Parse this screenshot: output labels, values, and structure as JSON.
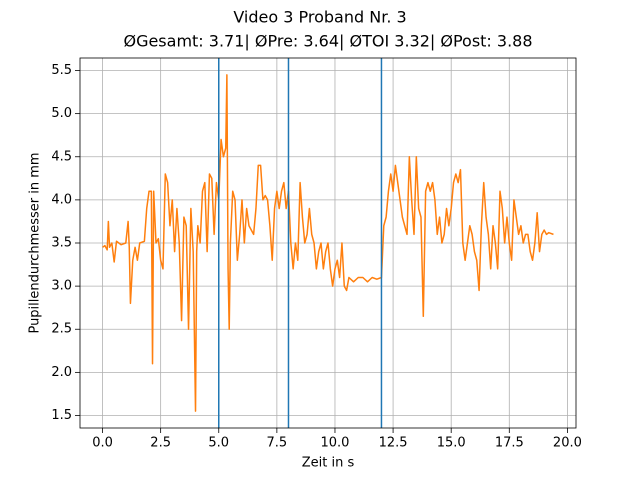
{
  "chart_data": {
    "type": "line",
    "title": "Video 3 Proband Nr. 3",
    "subtitle": "ØGesamt: 3.71| ØPre: 3.64| ØTOI 3.32| ØPost: 3.88",
    "x_label": "Zeit in s",
    "y_label": "Pupillendurchmesser in mm",
    "xlim": [
      -0.97,
      20.37
    ],
    "ylim": [
      1.355,
      5.645
    ],
    "xticks": [
      {
        "value": 0,
        "label": "0.0"
      },
      2.5,
      {
        "value": 5,
        "label": "5.0"
      },
      7.5,
      {
        "value": 10,
        "label": "10.0"
      },
      12.5,
      {
        "value": 15,
        "label": "15.0"
      },
      17.5,
      {
        "value": 20,
        "label": "20.0"
      }
    ],
    "yticks": [
      1.5,
      {
        "value": 2,
        "label": "2.0"
      },
      2.5,
      {
        "value": 3,
        "label": "3.0"
      },
      3.5,
      {
        "value": 4,
        "label": "4.0"
      },
      4.5,
      {
        "value": 5,
        "label": "5.0"
      },
      5.5
    ],
    "grid": true,
    "vlines": [
      5,
      8,
      12
    ],
    "vline_color": "#1f77b4",
    "series": [
      {
        "color": "#ff7f0e",
        "x": [
          0.0,
          0.1,
          0.2,
          0.25,
          0.3,
          0.4,
          0.5,
          0.6,
          0.8,
          1.0,
          1.1,
          1.15,
          1.2,
          1.3,
          1.4,
          1.5,
          1.6,
          1.8,
          1.9,
          2.0,
          2.1,
          2.15,
          2.2,
          2.3,
          2.4,
          2.5,
          2.6,
          2.7,
          2.8,
          2.9,
          3.0,
          3.1,
          3.2,
          3.3,
          3.4,
          3.5,
          3.6,
          3.7,
          3.8,
          3.9,
          4.0,
          4.05,
          4.1,
          4.2,
          4.3,
          4.4,
          4.5,
          4.6,
          4.7,
          4.8,
          4.9,
          5.0,
          5.1,
          5.2,
          5.3,
          5.35,
          5.4,
          5.45,
          5.5,
          5.6,
          5.7,
          5.8,
          5.9,
          6.0,
          6.1,
          6.2,
          6.3,
          6.5,
          6.6,
          6.7,
          6.8,
          6.9,
          7.0,
          7.1,
          7.2,
          7.3,
          7.4,
          7.5,
          7.6,
          7.7,
          7.8,
          7.9,
          8.0,
          8.1,
          8.2,
          8.3,
          8.4,
          8.5,
          8.6,
          8.7,
          8.8,
          8.9,
          9.0,
          9.1,
          9.2,
          9.3,
          9.4,
          9.5,
          9.6,
          9.7,
          9.8,
          9.9,
          10.0,
          10.1,
          10.2,
          10.3,
          10.4,
          10.5,
          10.6,
          10.8,
          11.0,
          11.2,
          11.4,
          11.6,
          11.8,
          12.0,
          12.1,
          12.2,
          12.3,
          12.4,
          12.5,
          12.6,
          12.7,
          12.8,
          12.9,
          13.0,
          13.1,
          13.2,
          13.3,
          13.4,
          13.5,
          13.6,
          13.7,
          13.8,
          13.9,
          14.0,
          14.1,
          14.2,
          14.3,
          14.4,
          14.5,
          14.6,
          14.7,
          14.8,
          14.9,
          15.0,
          15.1,
          15.2,
          15.3,
          15.4,
          15.5,
          15.6,
          15.7,
          15.8,
          15.9,
          16.0,
          16.1,
          16.2,
          16.3,
          16.4,
          16.5,
          16.6,
          16.7,
          16.8,
          16.9,
          17.0,
          17.1,
          17.2,
          17.3,
          17.4,
          17.5,
          17.6,
          17.7,
          17.8,
          17.9,
          18.0,
          18.1,
          18.2,
          18.3,
          18.4,
          18.5,
          18.6,
          18.7,
          18.8,
          18.9,
          19.0,
          19.1,
          19.2,
          19.4
        ],
        "values": [
          3.45,
          3.47,
          3.42,
          3.75,
          3.45,
          3.5,
          3.28,
          3.52,
          3.48,
          3.5,
          3.75,
          3.45,
          2.8,
          3.3,
          3.45,
          3.3,
          3.5,
          3.52,
          3.9,
          4.1,
          4.1,
          2.1,
          4.1,
          3.5,
          3.55,
          3.3,
          3.2,
          4.3,
          4.2,
          3.7,
          4.0,
          3.4,
          3.9,
          3.5,
          2.6,
          3.8,
          3.7,
          2.5,
          3.9,
          3.4,
          1.55,
          3.4,
          3.7,
          3.5,
          4.1,
          4.2,
          3.4,
          4.3,
          4.25,
          3.6,
          4.2,
          4.0,
          4.7,
          4.5,
          4.6,
          5.45,
          3.2,
          2.5,
          3.5,
          4.1,
          4.0,
          3.3,
          3.6,
          4.0,
          3.5,
          3.9,
          3.7,
          3.6,
          3.9,
          4.4,
          4.4,
          4.0,
          4.05,
          4.0,
          3.7,
          3.3,
          3.9,
          4.1,
          3.9,
          4.1,
          4.2,
          3.9,
          4.1,
          3.5,
          3.2,
          3.5,
          3.3,
          4.2,
          3.8,
          3.5,
          3.6,
          3.9,
          3.6,
          3.5,
          3.2,
          3.4,
          3.5,
          3.2,
          3.4,
          3.5,
          3.2,
          3.0,
          3.2,
          3.3,
          3.1,
          3.5,
          3.0,
          2.95,
          3.1,
          3.05,
          3.1,
          3.1,
          3.05,
          3.1,
          3.08,
          3.1,
          3.7,
          3.8,
          4.1,
          4.3,
          4.1,
          4.4,
          4.2,
          4.0,
          3.8,
          3.7,
          3.6,
          4.5,
          4.0,
          3.6,
          4.5,
          3.9,
          3.8,
          2.65,
          4.1,
          4.2,
          4.1,
          4.2,
          4.0,
          3.6,
          3.8,
          3.5,
          3.6,
          3.9,
          3.7,
          3.9,
          4.2,
          4.3,
          4.2,
          4.35,
          3.5,
          3.3,
          3.5,
          3.7,
          3.6,
          3.4,
          3.3,
          2.95,
          3.7,
          4.2,
          3.8,
          3.6,
          3.2,
          3.7,
          3.5,
          3.2,
          4.1,
          3.9,
          3.5,
          3.8,
          3.5,
          3.3,
          4.0,
          3.8,
          3.6,
          3.7,
          3.5,
          3.6,
          3.6,
          3.4,
          3.3,
          3.5,
          3.85,
          3.4,
          3.6,
          3.65,
          3.6,
          3.62,
          3.6
        ]
      }
    ]
  }
}
